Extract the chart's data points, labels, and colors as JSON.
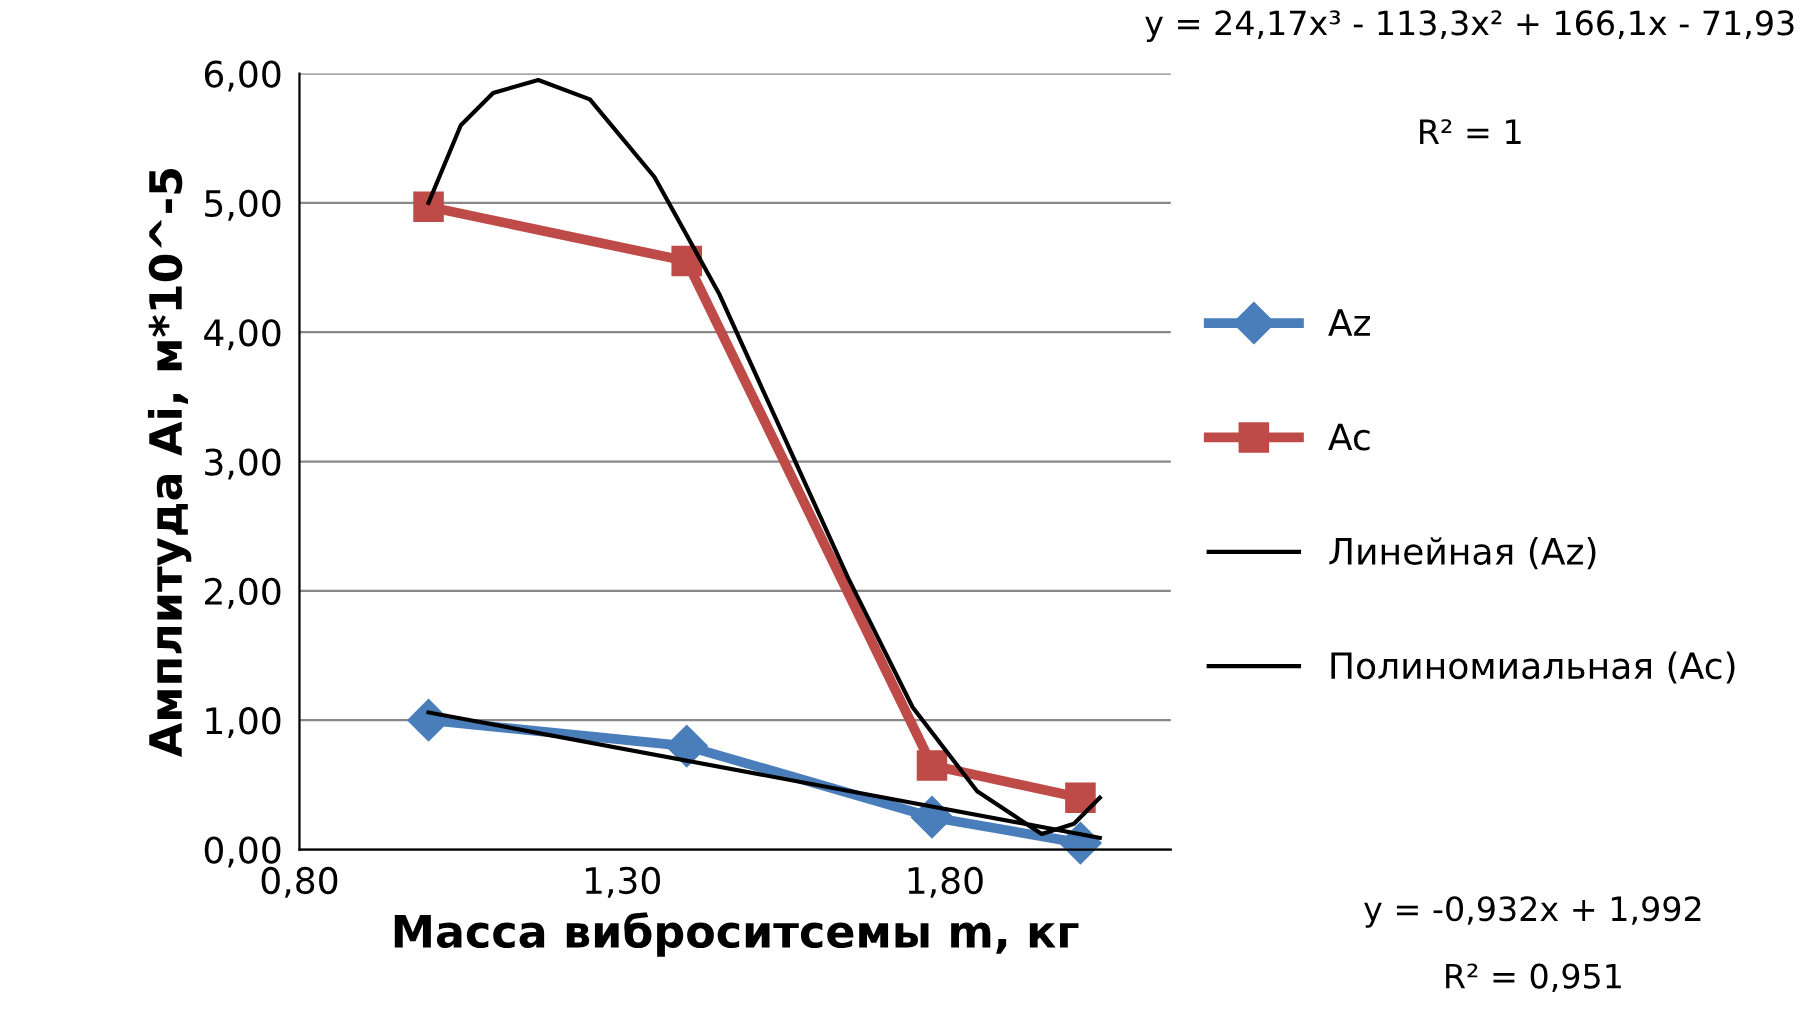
{
  "chart_data": {
    "type": "line",
    "xlabel": "Масса виброситсемы m, кг",
    "ylabel": "Амплитуда Ai, м*10^-5",
    "xlim": [
      0.8,
      2.15
    ],
    "xticks": [
      {
        "value": 0.8,
        "label": "0,80"
      },
      {
        "value": 1.3,
        "label": "1,30"
      },
      {
        "value": 1.8,
        "label": "1,80"
      }
    ],
    "ylim": [
      0,
      6
    ],
    "yticks": [
      {
        "value": 0,
        "label": "0,00"
      },
      {
        "value": 1,
        "label": "1,00"
      },
      {
        "value": 2,
        "label": "2,00"
      },
      {
        "value": 3,
        "label": "3,00"
      },
      {
        "value": 4,
        "label": "4,00"
      },
      {
        "value": 5,
        "label": "5,00"
      },
      {
        "value": 6,
        "label": "6,00"
      }
    ],
    "grid": "y",
    "legend": "right",
    "line_style": "solid",
    "series": [
      {
        "name": "Az",
        "color": "#4a7ebb",
        "marker": "diamond",
        "x": [
          1.0,
          1.4,
          1.78,
          2.01
        ],
        "values": [
          1.0,
          0.8,
          0.25,
          0.05
        ]
      },
      {
        "name": "Ac",
        "color": "#be4b48",
        "marker": "square",
        "x": [
          1.0,
          1.4,
          1.78,
          2.01
        ],
        "values": [
          4.97,
          4.55,
          0.65,
          0.4
        ]
      },
      {
        "name": "Линейная (Az)",
        "color": "#000000",
        "marker": "none",
        "x": [
          1.0,
          2.04
        ],
        "values": [
          1.06,
          0.09
        ]
      },
      {
        "name": "Полиномиальная (Ac)",
        "color": "#000000",
        "marker": "none",
        "x": [
          1.0,
          1.05,
          1.1,
          1.17,
          1.25,
          1.35,
          1.45,
          1.55,
          1.65,
          1.75,
          1.85,
          1.95,
          2.0,
          2.04
        ],
        "values": [
          5.0,
          5.6,
          5.85,
          5.95,
          5.8,
          5.2,
          4.3,
          3.2,
          2.1,
          1.1,
          0.45,
          0.12,
          0.2,
          0.4
        ]
      }
    ],
    "annotations": [
      "y = 24,17x³ - 113,3x² + 166,1x - 71,93",
      "R² = 1",
      "y = -0,932x + 1,992",
      "R² = 0,951"
    ]
  }
}
